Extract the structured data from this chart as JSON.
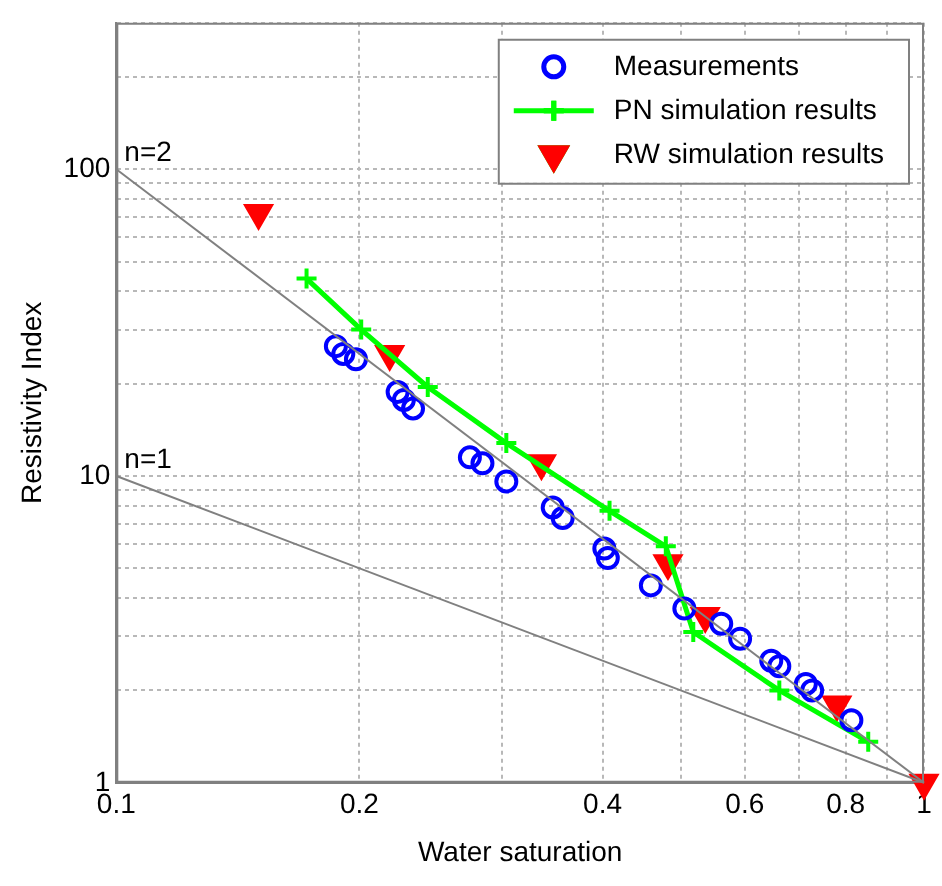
{
  "chart_data": {
    "type": "scatter",
    "xlabel": "Water saturation",
    "ylabel": "Resistivity Index",
    "log": "xy",
    "grid": true,
    "legend": "top right",
    "line_style": "solid",
    "xlim": [
      0.1,
      1
    ],
    "xticks": [
      0.1,
      0.2,
      {
        "value": 0.3,
        "label": null
      },
      0.4,
      {
        "value": 0.5,
        "label": null
      },
      0.6,
      {
        "value": 0.7,
        "label": null
      },
      0.8,
      {
        "value": 0.9,
        "label": null
      },
      1
    ],
    "ylim": [
      1,
      300
    ],
    "yticks": [
      1,
      {
        "value": 2,
        "label": null
      },
      {
        "value": 3,
        "label": null
      },
      {
        "value": 4,
        "label": null
      },
      {
        "value": 5,
        "label": null
      },
      {
        "value": 6,
        "label": null
      },
      {
        "value": 7,
        "label": null
      },
      {
        "value": 8,
        "label": null
      },
      {
        "value": 9,
        "label": null
      },
      10,
      {
        "value": 20,
        "label": null
      },
      {
        "value": 30,
        "label": null
      },
      {
        "value": 40,
        "label": null
      },
      {
        "value": 50,
        "label": null
      },
      {
        "value": 60,
        "label": null
      },
      {
        "value": 70,
        "label": null
      },
      {
        "value": 80,
        "label": null
      },
      {
        "value": 90,
        "label": null
      },
      100,
      {
        "value": 200,
        "label": null
      },
      {
        "value": 300,
        "label": null
      }
    ],
    "series": [
      {
        "type": "line",
        "marker": "none",
        "color": "#808080",
        "x": [
          0.1,
          1
        ],
        "values": [
          100,
          1
        ]
      },
      {
        "type": "line",
        "marker": "none",
        "color": "#808080",
        "x": [
          0.1,
          1
        ],
        "values": [
          10,
          1
        ]
      },
      {
        "name": "Measurements",
        "marker": "circle",
        "color": "#0000ff",
        "x": [
          0.187,
          0.191,
          0.198,
          0.223,
          0.227,
          0.233,
          0.274,
          0.284,
          0.304,
          0.347,
          0.357,
          0.402,
          0.406,
          0.459,
          0.505,
          0.561,
          0.592,
          0.647,
          0.662,
          0.714,
          0.727,
          0.813
        ],
        "values": [
          26.5,
          25,
          24,
          18.8,
          17.7,
          16.6,
          11.5,
          11,
          9.6,
          7.9,
          7.3,
          5.8,
          5.4,
          4.4,
          3.7,
          3.3,
          2.95,
          2.5,
          2.4,
          2.1,
          2.0,
          1.6
        ]
      },
      {
        "name": "PN simulation results",
        "type": "line",
        "marker": "cross",
        "color": "#00ff00",
        "x": [
          0.172,
          0.201,
          0.243,
          0.304,
          0.408,
          0.479,
          0.518,
          0.662,
          0.853
        ],
        "values": [
          44,
          30,
          19.5,
          12.8,
          7.7,
          5.9,
          3.1,
          2.0,
          1.36
        ]
      },
      {
        "name": "RW simulation results",
        "marker": "triangle",
        "color": "#ff0000",
        "x": [
          0.15,
          0.218,
          0.336,
          0.482,
          0.536,
          0.78,
          1
        ],
        "values": [
          72,
          25,
          11,
          5.2,
          3.5,
          1.8,
          1
        ]
      }
    ],
    "annotations": [
      {
        "text": "n=2",
        "x": 0.1,
        "y": 100
      },
      {
        "text": "n=1",
        "x": 0.1,
        "y": 10
      }
    ]
  }
}
